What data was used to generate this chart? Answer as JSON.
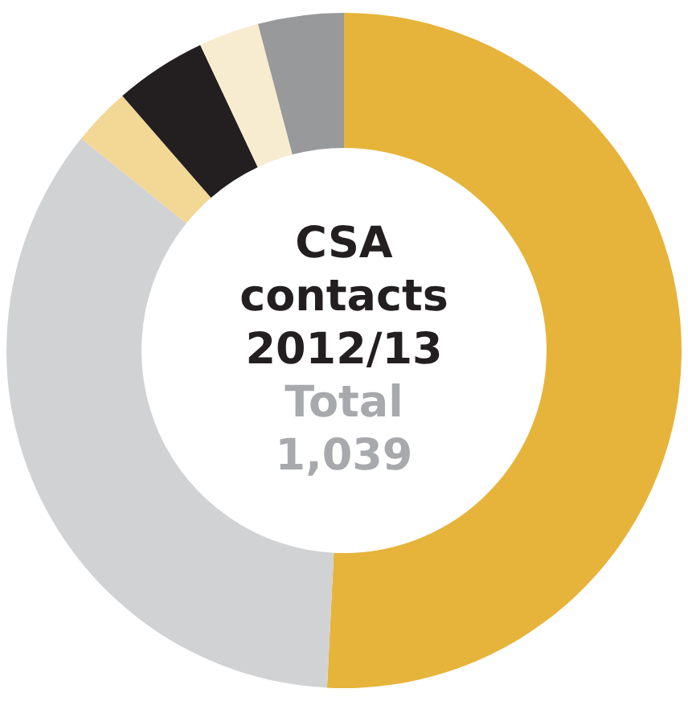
{
  "chart_data": {
    "type": "donut",
    "title": "CSA contacts 2012/13",
    "subtitle": "Total 1,039",
    "categories": [
      null,
      null,
      null,
      null,
      null,
      null
    ],
    "values": [
      50.8,
      35,
      2.8,
      4.4,
      2.9,
      4.1
    ],
    "colors": [
      "#e6b43a",
      "#d1d2d4",
      "#f2d795",
      "#231f20",
      "#f8ecd0",
      "#98999b"
    ]
  }
}
